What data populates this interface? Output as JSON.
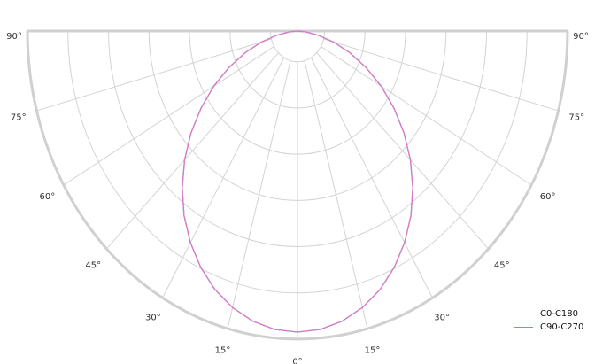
{
  "chart_data": {
    "type": "polar-line",
    "title": "",
    "angle_unit": "degrees",
    "angle_tick_labels": [
      "90°",
      "75°",
      "60°",
      "45°",
      "30°",
      "15°",
      "0°",
      "15°",
      "30°",
      "45°",
      "60°",
      "75°",
      "90°"
    ],
    "angle_ticks": [
      -90,
      -75,
      -60,
      -45,
      -30,
      -15,
      0,
      15,
      30,
      45,
      60,
      75,
      90
    ],
    "radial_range": [
      0,
      1
    ],
    "radial_rings": [
      0.1,
      0.25,
      0.4,
      0.55,
      0.7,
      0.85,
      1.0
    ],
    "grid": true,
    "legend_position": "bottom-right",
    "angles": [
      0,
      5,
      10,
      15,
      20,
      25,
      30,
      35,
      40,
      45,
      50,
      55,
      60,
      65,
      70,
      75,
      80,
      85,
      90
    ],
    "series": [
      {
        "name": "C0-C180",
        "color": "#e377c2",
        "values": [
          0.977,
          0.972,
          0.956,
          0.929,
          0.893,
          0.847,
          0.793,
          0.732,
          0.664,
          0.591,
          0.515,
          0.436,
          0.358,
          0.28,
          0.206,
          0.138,
          0.077,
          0.028,
          0
        ]
      },
      {
        "name": "C90-C270",
        "color": "#29b6f6",
        "values": [
          0.977,
          0.972,
          0.956,
          0.929,
          0.893,
          0.847,
          0.793,
          0.732,
          0.664,
          0.591,
          0.515,
          0.436,
          0.358,
          0.28,
          0.206,
          0.138,
          0.077,
          0.028,
          0
        ]
      }
    ]
  }
}
